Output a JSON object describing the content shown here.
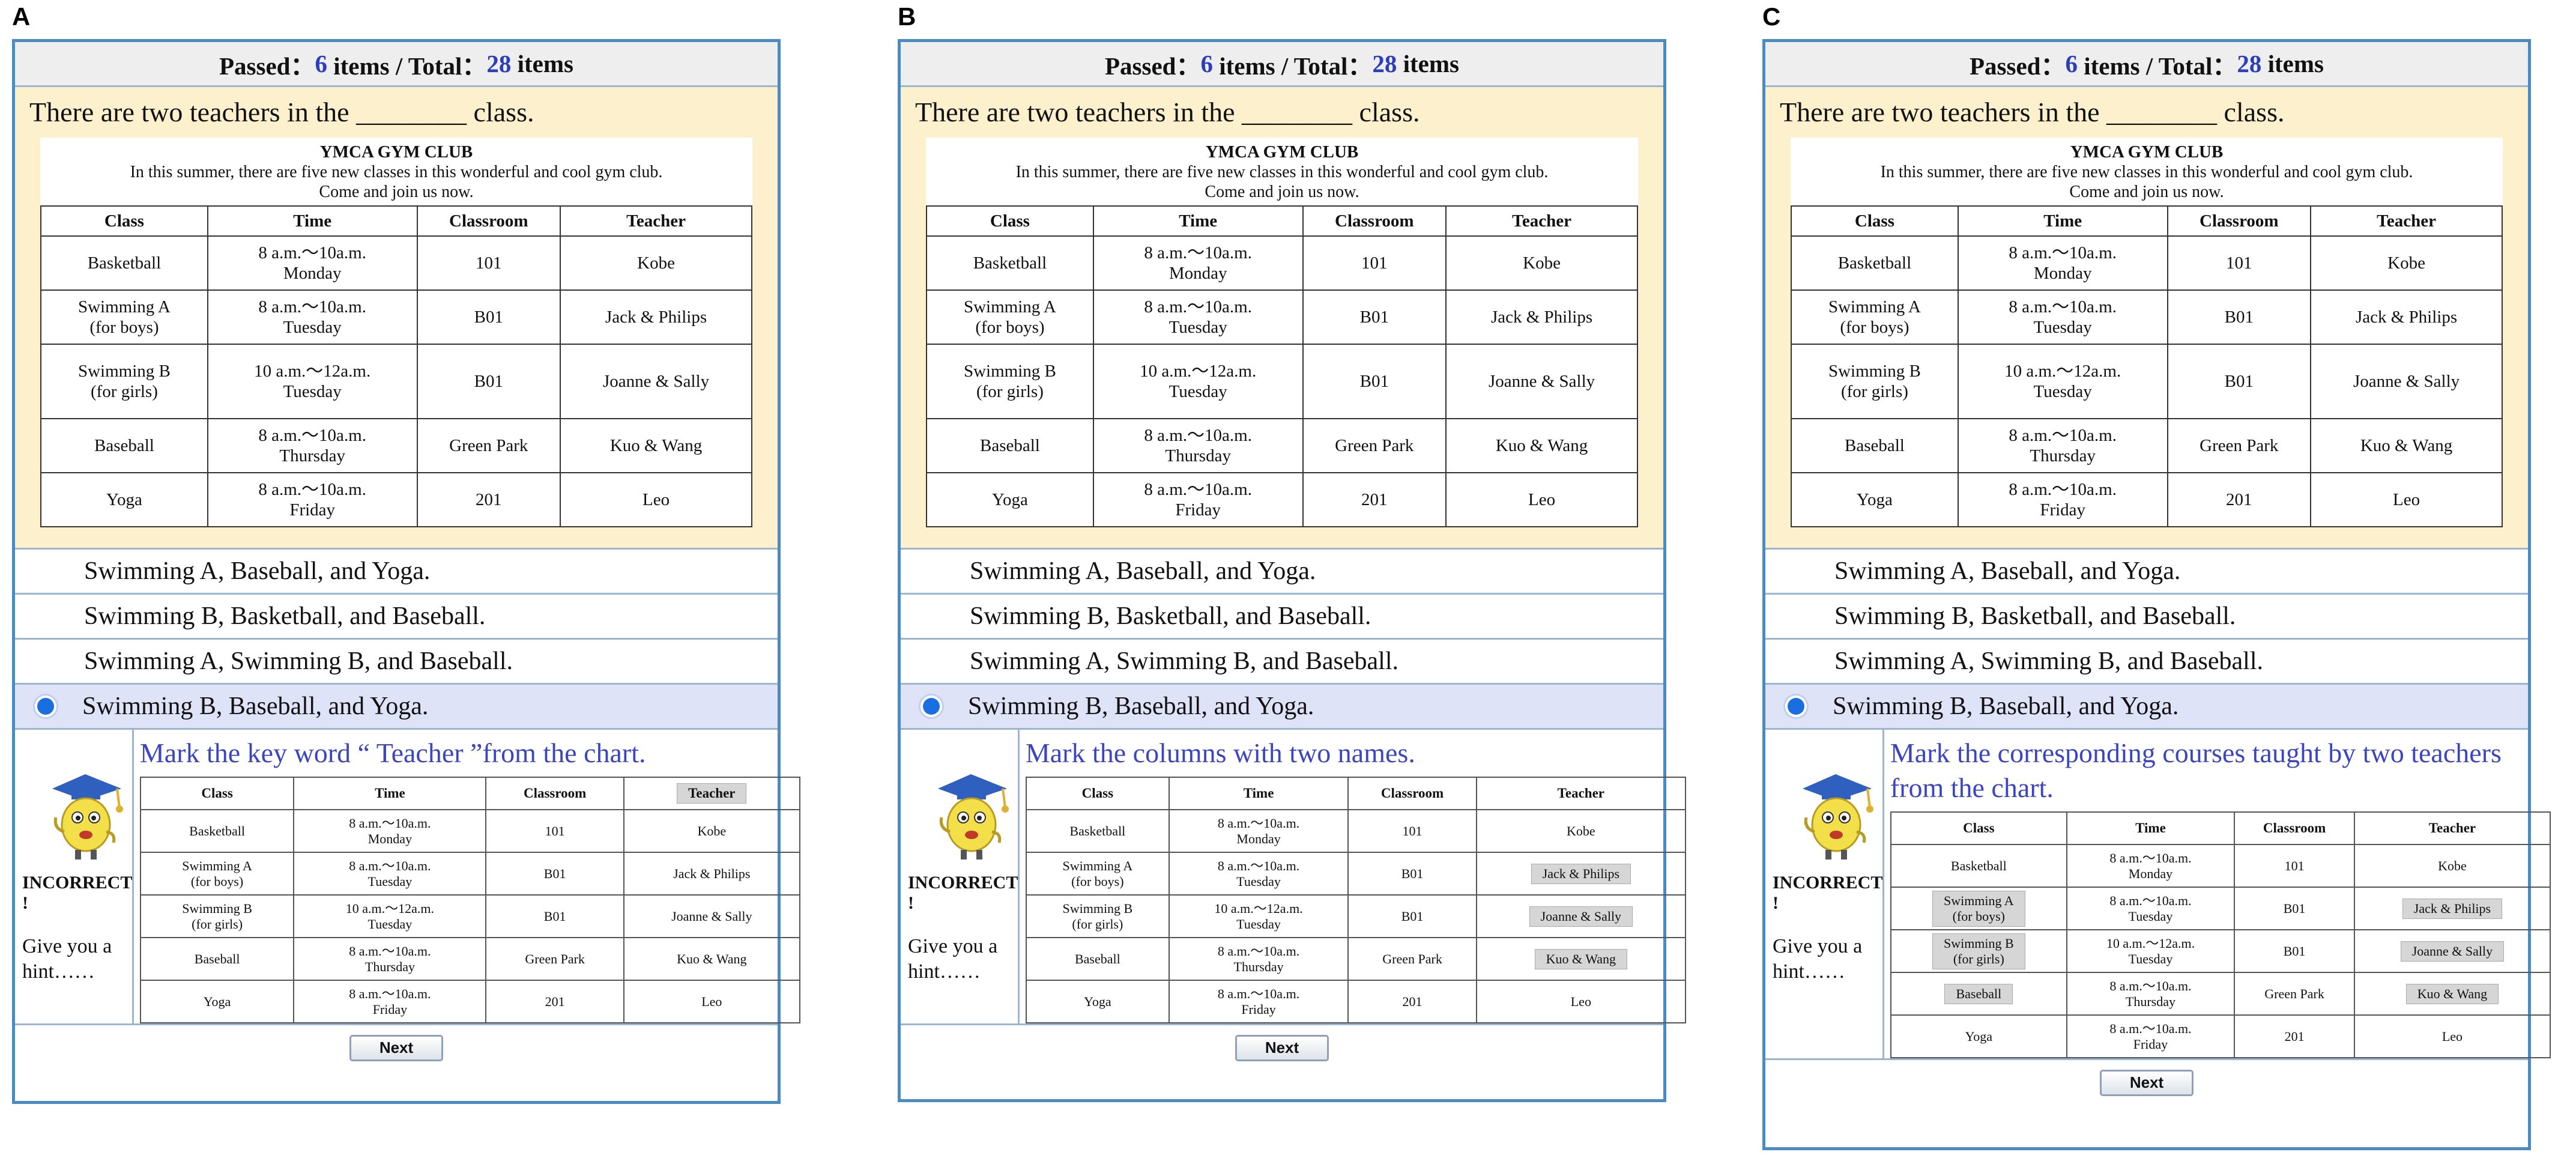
{
  "panels": [
    {
      "label": "A",
      "status": {
        "passed_text": "Passed：",
        "passed": "6",
        "middle_text": " items / Total：",
        "total": "28",
        "end_text": " items"
      },
      "question": "There are two teachers in the ________ class.",
      "doc_title": "YMCA GYM CLUB",
      "doc_intro": [
        "In this summer, there are five new classes in this wonderful and cool gym club.",
        "Come and join us now."
      ],
      "headers": [
        "Class",
        "Time",
        "Classroom",
        "Teacher"
      ],
      "rows": [
        [
          [
            "Basketball"
          ],
          [
            "8 a.m.～10a.m.",
            "Monday"
          ],
          [
            "101"
          ],
          [
            "Kobe"
          ]
        ],
        [
          [
            "Swimming A",
            "(for boys)"
          ],
          [
            "8 a.m.～10a.m.",
            "Tuesday"
          ],
          [
            "B01"
          ],
          [
            "Jack & Philips"
          ]
        ],
        [
          [
            "Swimming B",
            "(for girls)"
          ],
          [
            "10 a.m.～12a.m.",
            "Tuesday"
          ],
          [
            "B01"
          ],
          [
            "Joanne & Sally"
          ]
        ],
        [
          [
            "Baseball"
          ],
          [
            "8 a.m.～10a.m.",
            "Thursday"
          ],
          [
            "Green Park"
          ],
          [
            "Kuo & Wang"
          ]
        ],
        [
          [
            "Yoga"
          ],
          [
            "8 a.m.～10a.m.",
            "Friday"
          ],
          [
            "201"
          ],
          [
            "Leo"
          ]
        ]
      ],
      "options": [
        "Swimming A, Baseball, and Yoga.",
        "Swimming B, Basketball, and Baseball.",
        "Swimming A, Swimming B,  and Baseball.",
        "Swimming B, Baseball,  and Yoga."
      ],
      "selected_option": 3,
      "incorrect_text": "INCORRECT !",
      "give_hint_text": [
        "Give you a",
        "hint……"
      ],
      "hint_message": "Mark the key word “ Teacher ”from the chart.",
      "highlights": {
        "header": [
          3
        ],
        "cells": []
      },
      "next_label": "Next"
    },
    {
      "label": "B",
      "status": {
        "passed_text": "Passed：",
        "passed": "6",
        "middle_text": " items / Total：",
        "total": "28",
        "end_text": " items"
      },
      "question": "There are two teachers in the ________ class.",
      "doc_title": "YMCA GYM CLUB",
      "doc_intro": [
        "In this summer, there are five new classes in this wonderful and cool gym club.",
        "Come and join us now."
      ],
      "headers": [
        "Class",
        "Time",
        "Classroom",
        "Teacher"
      ],
      "rows": [
        [
          [
            "Basketball"
          ],
          [
            "8 a.m.～10a.m.",
            "Monday"
          ],
          [
            "101"
          ],
          [
            "Kobe"
          ]
        ],
        [
          [
            "Swimming A",
            "(for boys)"
          ],
          [
            "8 a.m.～10a.m.",
            "Tuesday"
          ],
          [
            "B01"
          ],
          [
            "Jack & Philips"
          ]
        ],
        [
          [
            "Swimming B",
            "(for girls)"
          ],
          [
            "10 a.m.～12a.m.",
            "Tuesday"
          ],
          [
            "B01"
          ],
          [
            "Joanne & Sally"
          ]
        ],
        [
          [
            "Baseball"
          ],
          [
            "8 a.m.～10a.m.",
            "Thursday"
          ],
          [
            "Green Park"
          ],
          [
            "Kuo & Wang"
          ]
        ],
        [
          [
            "Yoga"
          ],
          [
            "8 a.m.～10a.m.",
            "Friday"
          ],
          [
            "201"
          ],
          [
            "Leo"
          ]
        ]
      ],
      "options": [
        "Swimming A, Baseball, and Yoga.",
        "Swimming B, Basketball, and Baseball.",
        "Swimming A, Swimming B,  and Baseball.",
        "Swimming B, Baseball,  and Yoga."
      ],
      "selected_option": 3,
      "incorrect_text": "INCORRECT !",
      "give_hint_text": [
        "Give you a",
        "hint……"
      ],
      "hint_message": "Mark the columns with two names.",
      "highlights": {
        "header": [],
        "cells": [
          [
            1,
            3
          ],
          [
            2,
            3
          ],
          [
            3,
            3
          ]
        ]
      },
      "next_label": "Next"
    },
    {
      "label": "C",
      "status": {
        "passed_text": "Passed：",
        "passed": "6",
        "middle_text": " items / Total：",
        "total": "28",
        "end_text": " items"
      },
      "question": "There are two teachers in the ________ class.",
      "doc_title": "YMCA GYM CLUB",
      "doc_intro": [
        "In this summer, there are five new classes in this wonderful and cool gym club.",
        "Come and join us now."
      ],
      "headers": [
        "Class",
        "Time",
        "Classroom",
        "Teacher"
      ],
      "rows": [
        [
          [
            "Basketball"
          ],
          [
            "8 a.m.～10a.m.",
            "Monday"
          ],
          [
            "101"
          ],
          [
            "Kobe"
          ]
        ],
        [
          [
            "Swimming A",
            "(for boys)"
          ],
          [
            "8 a.m.～10a.m.",
            "Tuesday"
          ],
          [
            "B01"
          ],
          [
            "Jack & Philips"
          ]
        ],
        [
          [
            "Swimming B",
            "(for girls)"
          ],
          [
            "10 a.m.～12a.m.",
            "Tuesday"
          ],
          [
            "B01"
          ],
          [
            "Joanne & Sally"
          ]
        ],
        [
          [
            "Baseball"
          ],
          [
            "8 a.m.～10a.m.",
            "Thursday"
          ],
          [
            "Green Park"
          ],
          [
            "Kuo & Wang"
          ]
        ],
        [
          [
            "Yoga"
          ],
          [
            "8 a.m.～10a.m.",
            "Friday"
          ],
          [
            "201"
          ],
          [
            "Leo"
          ]
        ]
      ],
      "options": [
        "Swimming A, Baseball, and Yoga.",
        "Swimming B, Basketball, and Baseball.",
        "Swimming A, Swimming B,  and Baseball.",
        "Swimming B, Baseball,  and Yoga."
      ],
      "selected_option": 3,
      "incorrect_text": "INCORRECT !",
      "give_hint_text": [
        "Give you a",
        "hint……"
      ],
      "hint_message": "Mark the corresponding courses taught by two teachers from the chart.",
      "highlights": {
        "header": [],
        "cells": [
          [
            1,
            0
          ],
          [
            1,
            3
          ],
          [
            2,
            0
          ],
          [
            2,
            3
          ],
          [
            3,
            0
          ],
          [
            3,
            3
          ]
        ]
      },
      "next_label": "Next"
    }
  ],
  "colors": {
    "accent_blue": "#2d3fb8",
    "hint_text": "#3b45c2",
    "question_bg": "#fdf0cc",
    "selected_option_bg": "#dfe3f7",
    "radio": "#1a6fe0",
    "panel_border": "#4a8bc4"
  }
}
